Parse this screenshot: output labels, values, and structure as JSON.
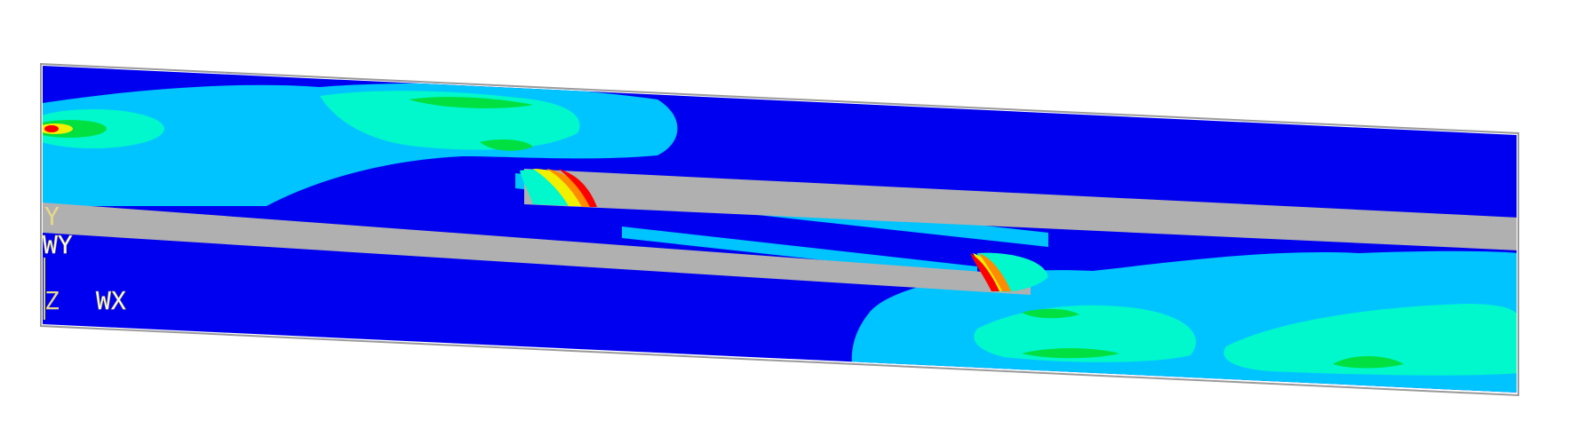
{
  "colors": {
    "background": "#ffffff",
    "outline": "#9a9a9a",
    "level_0": "#0000f0",
    "level_1": "#00c4ff",
    "level_2": "#00f8cc",
    "level_3": "#00e040",
    "level_4": "#f0f000",
    "level_5": "#ff8c00",
    "level_6": "#ff0000",
    "core": "#b0b0b0"
  },
  "triad": {
    "y_label": "Y",
    "wy_label": "WY",
    "z_label": "Z",
    "wx_label": "WX"
  }
}
